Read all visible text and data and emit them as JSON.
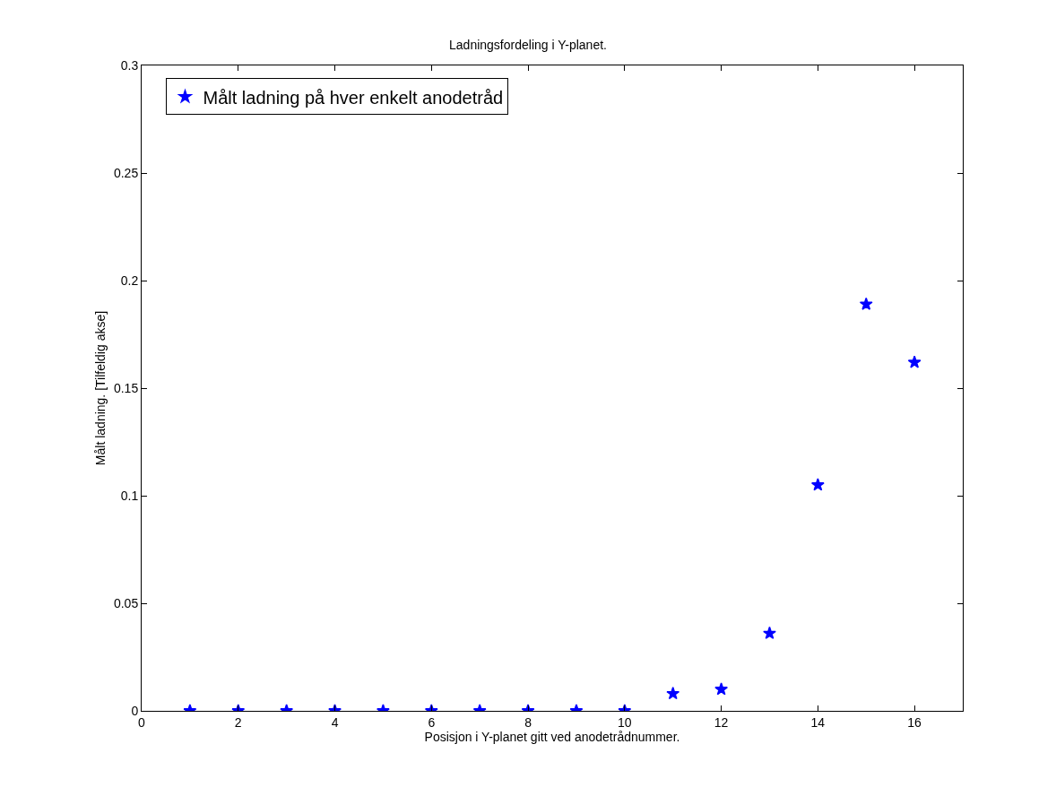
{
  "chart_data": {
    "type": "scatter",
    "title": "Ladningsfordeling i Y-planet.",
    "xlabel": "Posisjon i Y-planet gitt ved anodetrådnummer.",
    "ylabel": "Målt ladning. [Tilfeldig akse]",
    "x": [
      1,
      2,
      3,
      4,
      5,
      6,
      7,
      8,
      9,
      10,
      11,
      12,
      13,
      14,
      15,
      16
    ],
    "series": [
      {
        "name": "Målt ladning på hver enkelt anodetråd",
        "color": "#0000ff",
        "values": [
          0,
          0,
          0,
          0,
          0,
          0,
          0,
          0,
          0,
          0,
          0.008,
          0.01,
          0.036,
          0.105,
          0.189,
          0.162
        ]
      }
    ],
    "xlim": [
      0,
      17
    ],
    "xticks": [
      0,
      2,
      4,
      6,
      8,
      10,
      12,
      14,
      16
    ],
    "ylim": [
      0,
      0.3
    ],
    "yticks": [
      0,
      0.05,
      0.1,
      0.15,
      0.2,
      0.25,
      0.3
    ],
    "grid": false,
    "legend": "top left",
    "marker": "star"
  }
}
